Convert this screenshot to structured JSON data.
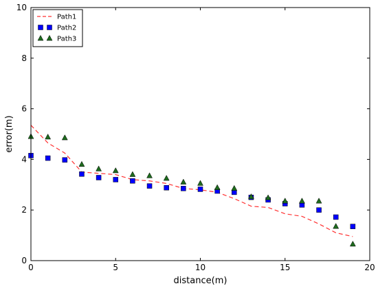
{
  "chart_data": {
    "type": "line",
    "title": "",
    "xlabel": "distance(m)",
    "ylabel": "error(m)",
    "xlim": [
      0,
      20
    ],
    "ylim": [
      0,
      10
    ],
    "xticks": [
      0,
      5,
      10,
      15,
      20
    ],
    "yticks": [
      0,
      2,
      4,
      6,
      8,
      10
    ],
    "grid": false,
    "legend_position": "top-left",
    "series": [
      {
        "name": "Path1",
        "style": "dashed-line",
        "color": "#ff3030",
        "x": [
          0,
          1,
          2,
          3,
          4,
          5,
          6,
          7,
          8,
          9,
          10,
          11,
          12,
          13,
          14,
          15,
          16,
          17,
          18,
          19
        ],
        "y": [
          5.35,
          4.65,
          4.25,
          3.5,
          3.45,
          3.4,
          3.2,
          3.15,
          3.05,
          2.85,
          2.8,
          2.7,
          2.45,
          2.15,
          2.1,
          1.85,
          1.75,
          1.45,
          1.1,
          0.95
        ]
      },
      {
        "name": "Path2",
        "style": "square-marker",
        "color": "#0000ff",
        "x": [
          0,
          1,
          2,
          3,
          4,
          5,
          6,
          7,
          8,
          9,
          10,
          11,
          12,
          13,
          14,
          15,
          16,
          17,
          18,
          19
        ],
        "y": [
          4.15,
          4.05,
          3.98,
          3.42,
          3.28,
          3.2,
          3.15,
          2.95,
          2.88,
          2.85,
          2.82,
          2.75,
          2.7,
          2.5,
          2.4,
          2.25,
          2.2,
          2.0,
          1.72,
          1.35
        ]
      },
      {
        "name": "Path3",
        "style": "triangle-marker",
        "color": "#1e6b1e",
        "x": [
          0,
          1,
          2,
          3,
          4,
          5,
          6,
          7,
          8,
          9,
          10,
          11,
          12,
          13,
          14,
          15,
          16,
          17,
          18,
          19
        ],
        "y": [
          4.9,
          4.88,
          4.85,
          3.8,
          3.62,
          3.55,
          3.4,
          3.35,
          3.25,
          3.1,
          3.05,
          2.88,
          2.85,
          2.52,
          2.48,
          2.35,
          2.35,
          2.35,
          1.35,
          0.65
        ]
      }
    ]
  }
}
